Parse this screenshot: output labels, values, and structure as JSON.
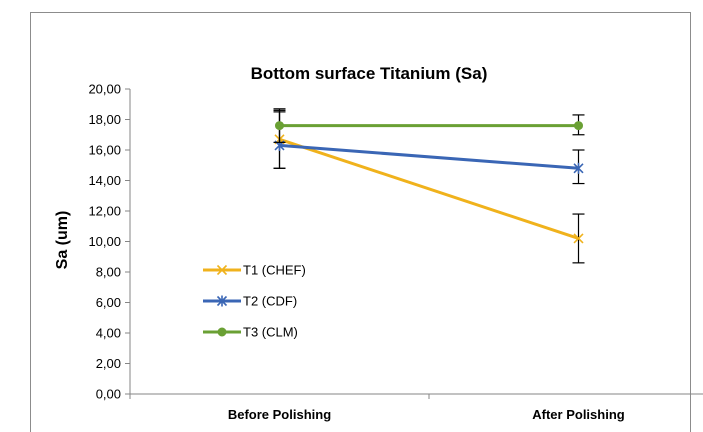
{
  "chart_data": {
    "type": "line",
    "title": "Bottom surface Titanium (Sa)",
    "xlabel": "",
    "ylabel": "Sa (um)",
    "categories": [
      "Before Polishing",
      "After Polishing"
    ],
    "ylim": [
      0,
      20
    ],
    "yticks": [
      "0,00",
      "2,00",
      "4,00",
      "6,00",
      "8,00",
      "10,00",
      "12,00",
      "14,00",
      "16,00",
      "18,00",
      "20,00"
    ],
    "grid": false,
    "legend_position": "left",
    "series": [
      {
        "name": "T1 (CHEF)",
        "color": "#f0b21c",
        "marker": "x",
        "values": [
          16.7,
          10.2
        ],
        "err_low": [
          14.8,
          8.6
        ],
        "err_high": [
          18.5,
          11.8
        ]
      },
      {
        "name": "T2 (CDF)",
        "color": "#3a66b5",
        "marker": "star",
        "values": [
          16.3,
          14.8
        ],
        "err_low": [
          14.8,
          13.8
        ],
        "err_high": [
          18.7,
          16.0
        ]
      },
      {
        "name": "T3 (CLM)",
        "color": "#6aa034",
        "marker": "circle",
        "values": [
          17.6,
          17.6
        ],
        "err_low": [
          16.5,
          17.0
        ],
        "err_high": [
          18.6,
          18.3
        ]
      }
    ]
  }
}
